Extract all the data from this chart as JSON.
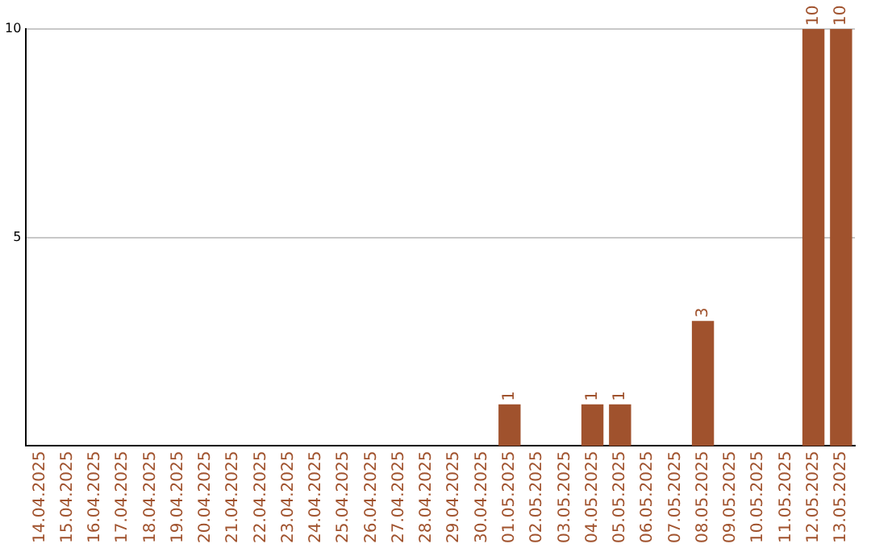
{
  "chart_data": {
    "type": "bar",
    "categories": [
      "14.04.2025",
      "15.04.2025",
      "16.04.2025",
      "17.04.2025",
      "18.04.2025",
      "19.04.2025",
      "20.04.2025",
      "21.04.2025",
      "22.04.2025",
      "23.04.2025",
      "24.04.2025",
      "25.04.2025",
      "26.04.2025",
      "27.04.2025",
      "28.04.2025",
      "29.04.2025",
      "30.04.2025",
      "01.05.2025",
      "02.05.2025",
      "03.05.2025",
      "04.05.2025",
      "05.05.2025",
      "06.05.2025",
      "07.05.2025",
      "08.05.2025",
      "09.05.2025",
      "10.05.2025",
      "11.05.2025",
      "12.05.2025",
      "13.05.2025"
    ],
    "values": [
      0,
      0,
      0,
      0,
      0,
      0,
      0,
      0,
      0,
      0,
      0,
      0,
      0,
      0,
      0,
      0,
      0,
      1,
      0,
      0,
      1,
      1,
      0,
      0,
      3,
      0,
      0,
      0,
      10,
      10
    ],
    "value_labels": [
      null,
      null,
      null,
      null,
      null,
      null,
      null,
      null,
      null,
      null,
      null,
      null,
      null,
      null,
      null,
      null,
      null,
      "1",
      null,
      null,
      "1",
      "1",
      null,
      null,
      "3",
      null,
      null,
      null,
      "10",
      "10"
    ],
    "color": "#a0522d",
    "ylim": [
      0,
      10
    ],
    "yticks": [
      5,
      10
    ],
    "grid": "y",
    "legend": false
  }
}
